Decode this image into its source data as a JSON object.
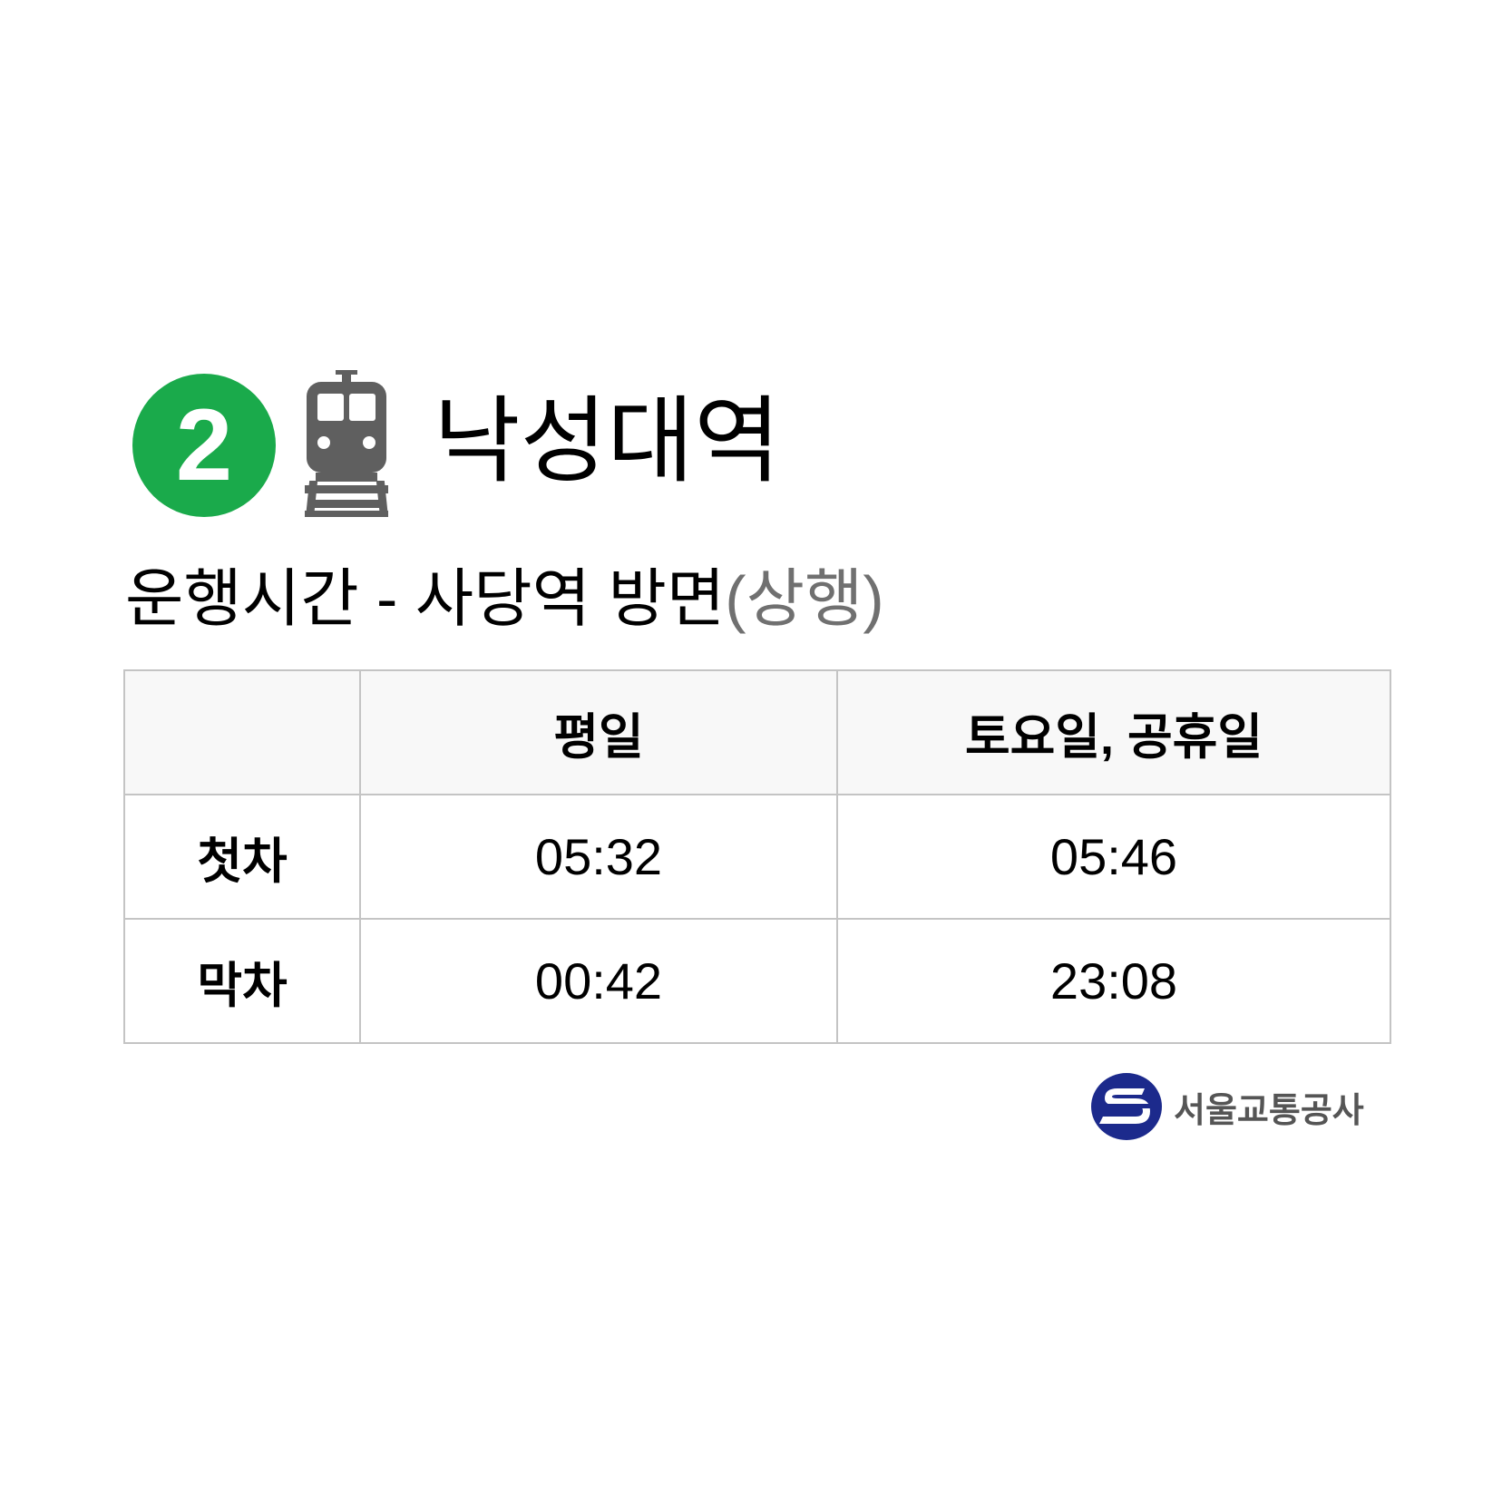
{
  "line": {
    "number": "2",
    "color": "#1aaa4b"
  },
  "icons": {
    "train": "train-icon",
    "logo": "seoul-metro-logo-icon"
  },
  "station": {
    "name": "낙성대역"
  },
  "direction": {
    "label": "운행시간 - 사당역 방면",
    "sub": "(상행)"
  },
  "timetable": {
    "columns": [
      "",
      "평일",
      "토요일, 공휴일"
    ],
    "rows": [
      {
        "label": "첫차",
        "weekday": "05:32",
        "weekend": "05:46"
      },
      {
        "label": "막차",
        "weekday": "00:42",
        "weekend": "23:08"
      }
    ]
  },
  "footer": {
    "company": "서울교통공사"
  }
}
